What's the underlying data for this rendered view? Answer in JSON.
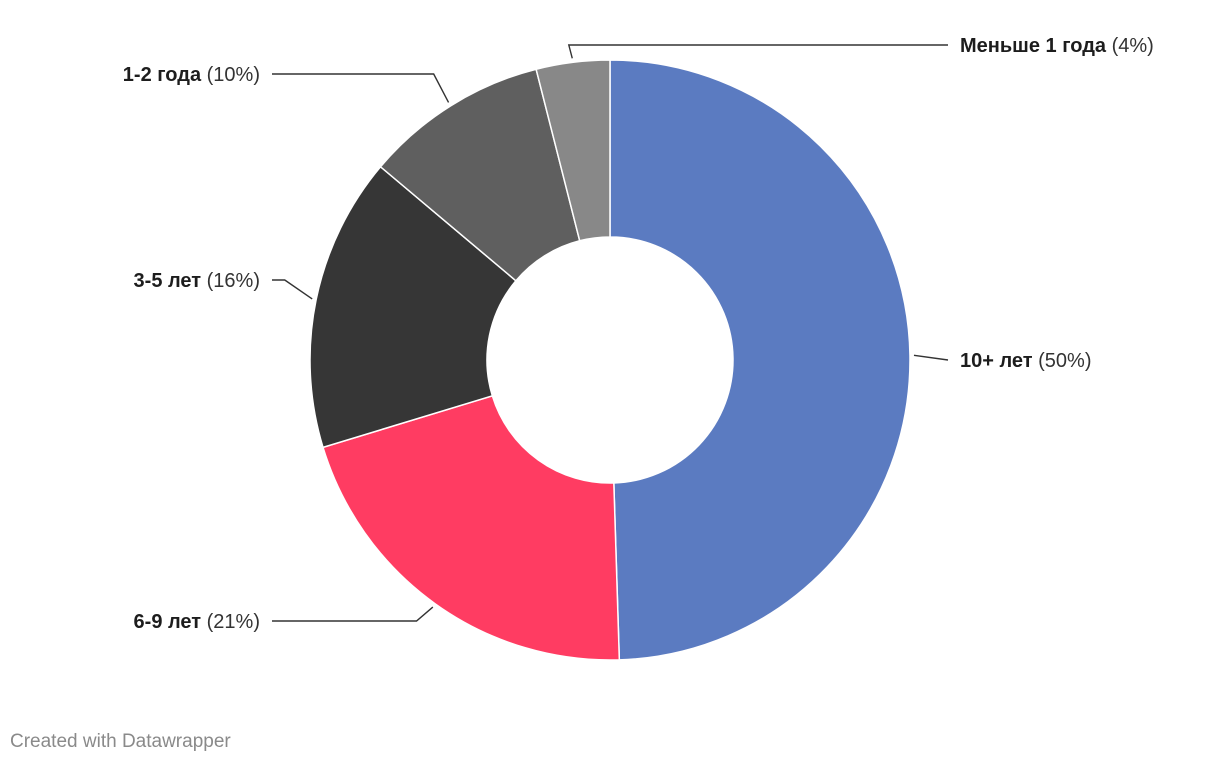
{
  "chart_data": {
    "type": "pie",
    "donut": true,
    "categories": [
      "10+ лет",
      "6-9 лет",
      "3-5 лет",
      "1-2 года",
      "Меньше 1 года"
    ],
    "values": [
      50,
      21,
      16,
      10,
      4
    ],
    "value_labels": [
      "(50%)",
      "(21%)",
      "(16%)",
      "(10%)",
      "(4%)"
    ],
    "colors": [
      "#5b7bc1",
      "#ff3c62",
      "#363636",
      "#5f5f5f",
      "#888888"
    ],
    "title": "",
    "legend": "none"
  },
  "footer": {
    "credit": "Created with Datawrapper"
  }
}
